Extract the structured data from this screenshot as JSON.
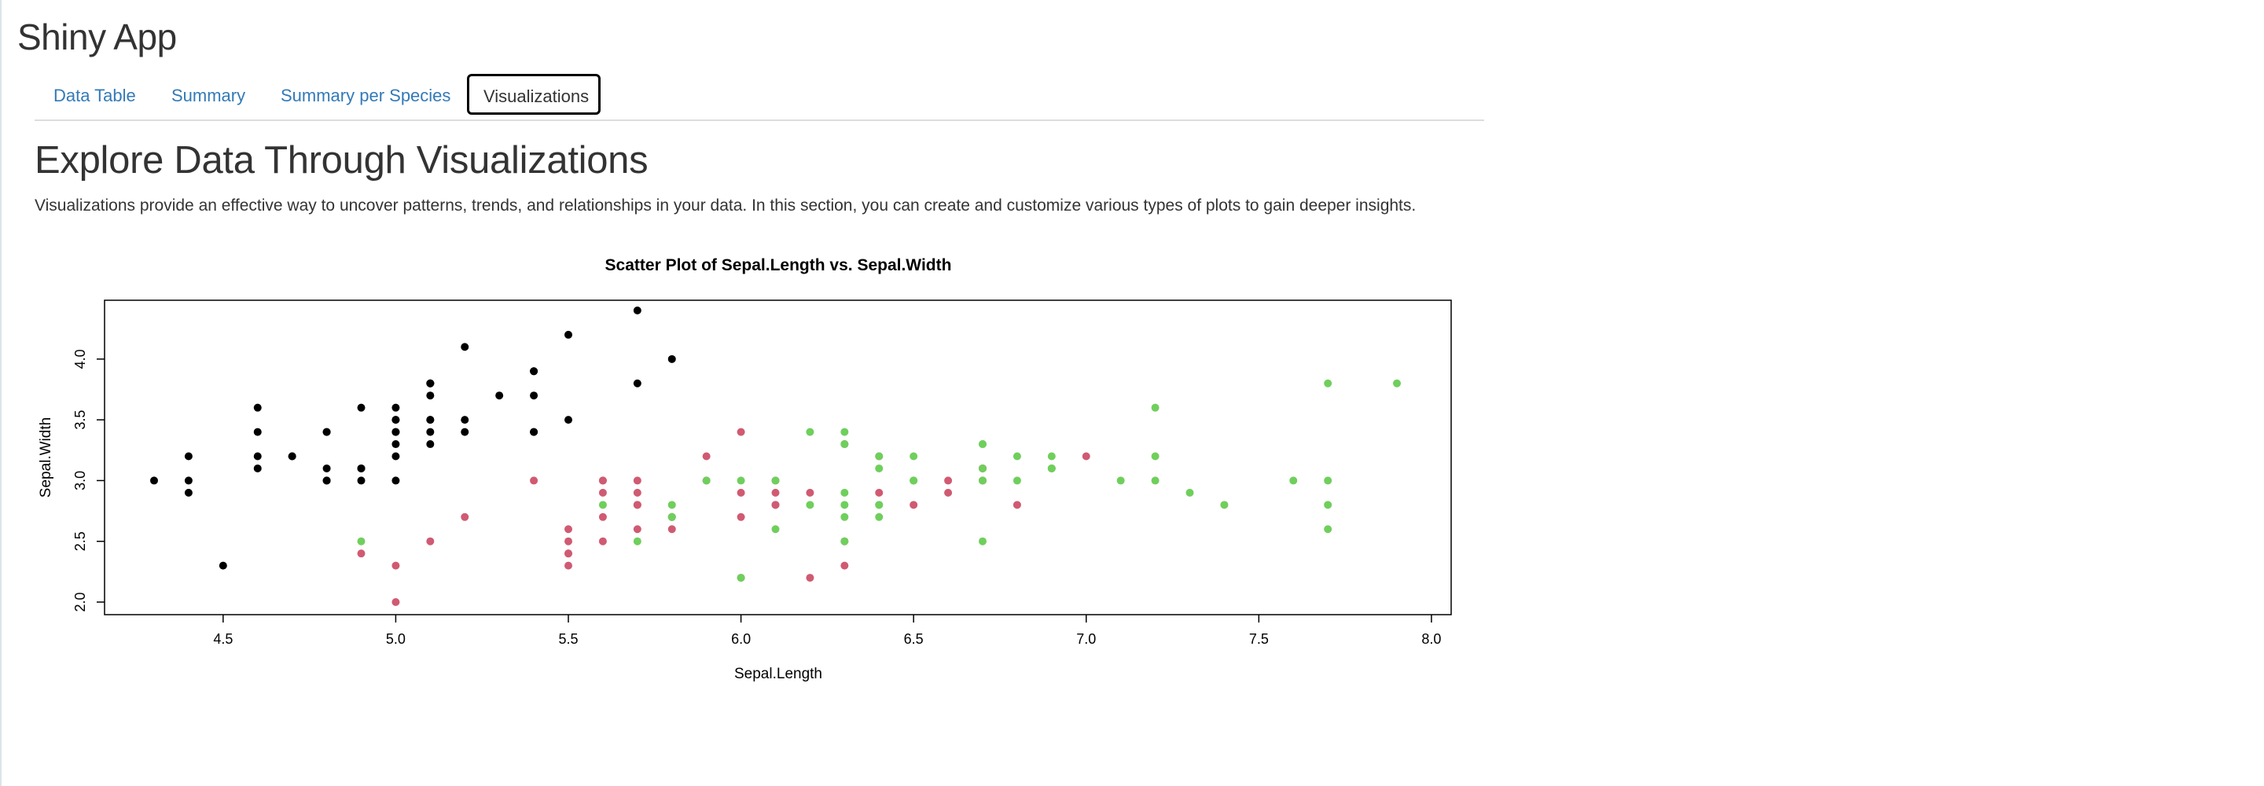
{
  "app": {
    "title": "Shiny App"
  },
  "tabs": [
    {
      "label": "Data Table",
      "active": false
    },
    {
      "label": "Summary",
      "active": false
    },
    {
      "label": "Summary per Species",
      "active": false
    },
    {
      "label": "Visualizations",
      "active": true
    }
  ],
  "main": {
    "heading": "Explore Data Through Visualizations",
    "description": "Visualizations provide an effective way to uncover patterns, trends, and relationships in your data. In this section, you can create and customize various types of plots to gain deeper insights."
  },
  "colors": {
    "tab_link": "#337ab7",
    "setosa": "#000000",
    "versicolor": "#d05a72",
    "virginica": "#6fcf5c"
  },
  "chart_data": {
    "type": "scatter",
    "title": "Scatter Plot of Sepal.Length vs. Sepal.Width",
    "xlabel": "Sepal.Length",
    "ylabel": "Sepal.Width",
    "xlim": [
      4.3,
      7.9
    ],
    "ylim": [
      2.0,
      4.4
    ],
    "xticks": [
      "4.5",
      "5.0",
      "5.5",
      "6.0",
      "6.5",
      "7.0",
      "7.5",
      "8.0"
    ],
    "yticks": [
      "2.0",
      "2.5",
      "3.0",
      "3.5",
      "4.0"
    ],
    "grid": false,
    "legend": "none",
    "series": [
      {
        "color": "#000000",
        "points": [
          [
            5.1,
            3.5
          ],
          [
            4.9,
            3.0
          ],
          [
            4.7,
            3.2
          ],
          [
            4.6,
            3.1
          ],
          [
            5.0,
            3.6
          ],
          [
            5.4,
            3.9
          ],
          [
            4.6,
            3.4
          ],
          [
            5.0,
            3.4
          ],
          [
            4.4,
            2.9
          ],
          [
            4.9,
            3.1
          ],
          [
            5.4,
            3.7
          ],
          [
            4.8,
            3.4
          ],
          [
            4.8,
            3.0
          ],
          [
            4.3,
            3.0
          ],
          [
            5.8,
            4.0
          ],
          [
            5.7,
            4.4
          ],
          [
            5.4,
            3.9
          ],
          [
            5.1,
            3.5
          ],
          [
            5.7,
            3.8
          ],
          [
            5.1,
            3.8
          ],
          [
            5.4,
            3.4
          ],
          [
            5.1,
            3.7
          ],
          [
            4.6,
            3.6
          ],
          [
            5.1,
            3.3
          ],
          [
            4.8,
            3.4
          ],
          [
            5.0,
            3.0
          ],
          [
            5.0,
            3.4
          ],
          [
            5.2,
            3.5
          ],
          [
            5.2,
            3.4
          ],
          [
            4.7,
            3.2
          ],
          [
            4.8,
            3.1
          ],
          [
            5.4,
            3.4
          ],
          [
            5.2,
            4.1
          ],
          [
            5.5,
            4.2
          ],
          [
            4.9,
            3.1
          ],
          [
            5.0,
            3.2
          ],
          [
            5.5,
            3.5
          ],
          [
            4.9,
            3.6
          ],
          [
            4.4,
            3.0
          ],
          [
            5.1,
            3.4
          ],
          [
            5.0,
            3.5
          ],
          [
            4.5,
            2.3
          ],
          [
            4.4,
            3.2
          ],
          [
            5.0,
            3.5
          ],
          [
            5.1,
            3.8
          ],
          [
            4.8,
            3.0
          ],
          [
            5.1,
            3.8
          ],
          [
            4.6,
            3.2
          ],
          [
            5.3,
            3.7
          ],
          [
            5.0,
            3.3
          ]
        ]
      },
      {
        "color": "#d05a72",
        "points": [
          [
            7.0,
            3.2
          ],
          [
            6.4,
            3.2
          ],
          [
            6.9,
            3.1
          ],
          [
            5.5,
            2.3
          ],
          [
            6.5,
            2.8
          ],
          [
            5.7,
            2.8
          ],
          [
            6.3,
            3.3
          ],
          [
            4.9,
            2.4
          ],
          [
            6.6,
            2.9
          ],
          [
            5.2,
            2.7
          ],
          [
            5.0,
            2.0
          ],
          [
            5.9,
            3.0
          ],
          [
            6.0,
            2.2
          ],
          [
            6.1,
            2.9
          ],
          [
            5.6,
            2.9
          ],
          [
            6.7,
            3.1
          ],
          [
            5.6,
            3.0
          ],
          [
            5.8,
            2.7
          ],
          [
            6.2,
            2.2
          ],
          [
            5.6,
            2.5
          ],
          [
            5.9,
            3.2
          ],
          [
            6.1,
            2.8
          ],
          [
            6.3,
            2.5
          ],
          [
            6.1,
            2.8
          ],
          [
            6.4,
            2.9
          ],
          [
            6.6,
            3.0
          ],
          [
            6.8,
            2.8
          ],
          [
            6.7,
            3.0
          ],
          [
            6.0,
            2.9
          ],
          [
            5.7,
            2.6
          ],
          [
            5.5,
            2.4
          ],
          [
            5.5,
            2.4
          ],
          [
            5.8,
            2.7
          ],
          [
            6.0,
            2.7
          ],
          [
            5.4,
            3.0
          ],
          [
            6.0,
            3.4
          ],
          [
            6.7,
            3.1
          ],
          [
            6.3,
            2.3
          ],
          [
            5.6,
            3.0
          ],
          [
            5.5,
            2.5
          ],
          [
            5.5,
            2.6
          ],
          [
            6.1,
            3.0
          ],
          [
            5.8,
            2.6
          ],
          [
            5.0,
            2.3
          ],
          [
            5.6,
            2.7
          ],
          [
            5.7,
            3.0
          ],
          [
            5.7,
            2.9
          ],
          [
            6.2,
            2.9
          ],
          [
            5.1,
            2.5
          ],
          [
            5.7,
            2.8
          ]
        ]
      },
      {
        "color": "#6fcf5c",
        "points": [
          [
            6.3,
            3.3
          ],
          [
            5.8,
            2.7
          ],
          [
            7.1,
            3.0
          ],
          [
            6.3,
            2.9
          ],
          [
            6.5,
            3.0
          ],
          [
            7.6,
            3.0
          ],
          [
            4.9,
            2.5
          ],
          [
            7.3,
            2.9
          ],
          [
            6.7,
            2.5
          ],
          [
            7.2,
            3.6
          ],
          [
            6.5,
            3.2
          ],
          [
            6.4,
            2.7
          ],
          [
            6.8,
            3.0
          ],
          [
            5.7,
            2.5
          ],
          [
            5.8,
            2.8
          ],
          [
            6.4,
            3.2
          ],
          [
            6.5,
            3.0
          ],
          [
            7.7,
            3.8
          ],
          [
            7.7,
            2.6
          ],
          [
            6.0,
            2.2
          ],
          [
            6.9,
            3.2
          ],
          [
            5.6,
            2.8
          ],
          [
            7.7,
            2.8
          ],
          [
            6.3,
            2.7
          ],
          [
            6.7,
            3.3
          ],
          [
            7.2,
            3.2
          ],
          [
            6.2,
            2.8
          ],
          [
            6.1,
            3.0
          ],
          [
            6.4,
            2.8
          ],
          [
            7.2,
            3.0
          ],
          [
            7.4,
            2.8
          ],
          [
            7.9,
            3.8
          ],
          [
            6.4,
            2.8
          ],
          [
            6.3,
            2.8
          ],
          [
            6.1,
            2.6
          ],
          [
            7.7,
            3.0
          ],
          [
            6.3,
            3.4
          ],
          [
            6.4,
            3.1
          ],
          [
            6.0,
            3.0
          ],
          [
            6.9,
            3.1
          ],
          [
            6.7,
            3.1
          ],
          [
            6.9,
            3.1
          ],
          [
            5.8,
            2.7
          ],
          [
            6.8,
            3.2
          ],
          [
            6.7,
            3.3
          ],
          [
            6.7,
            3.0
          ],
          [
            6.3,
            2.5
          ],
          [
            6.5,
            3.0
          ],
          [
            6.2,
            3.4
          ],
          [
            5.9,
            3.0
          ]
        ]
      }
    ]
  }
}
